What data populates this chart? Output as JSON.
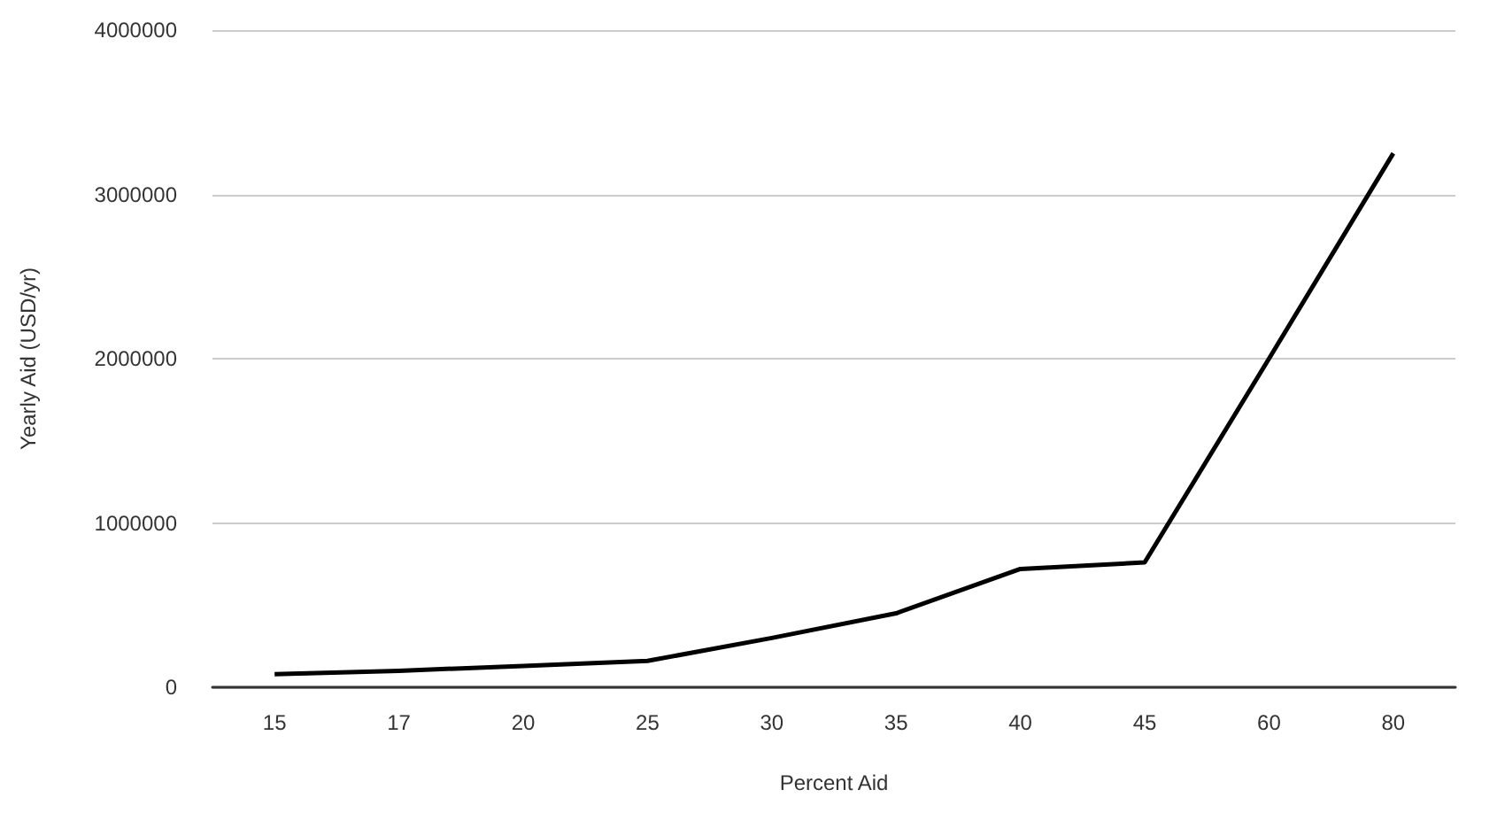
{
  "chart_data": {
    "type": "line",
    "xlabel": "Percent Aid",
    "ylabel": "Yearly Aid (USD/yr)",
    "categories": [
      "15",
      "17",
      "20",
      "25",
      "30",
      "35",
      "40",
      "45",
      "60",
      "80"
    ],
    "series": [
      {
        "color": "#000000",
        "values": [
          80000,
          100000,
          130000,
          160000,
          300000,
          450000,
          720000,
          760000,
          2000000,
          3250000
        ]
      }
    ],
    "ylim": [
      0,
      4000000
    ],
    "yticks": [
      0,
      1000000,
      2000000,
      3000000,
      4000000
    ],
    "grid": "y",
    "marker": "none",
    "line_style": "solid"
  }
}
